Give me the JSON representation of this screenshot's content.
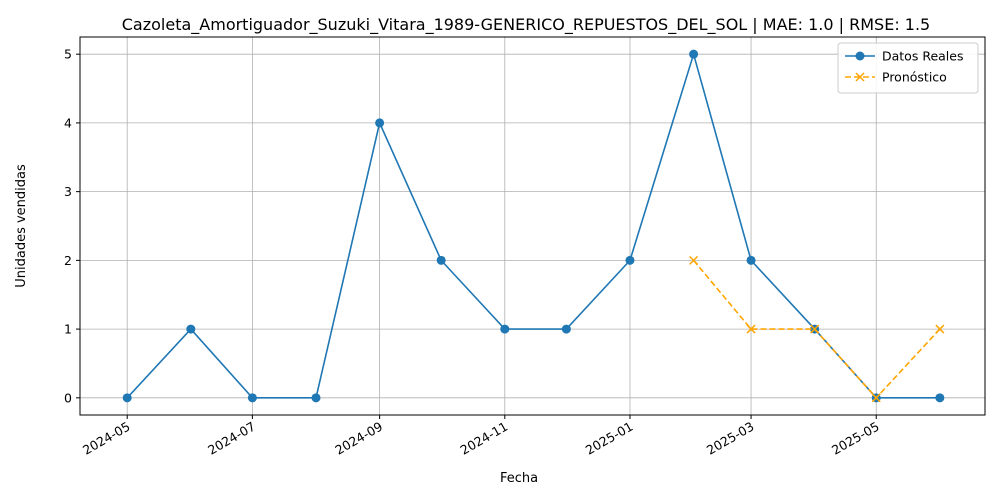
{
  "chart_data": {
    "type": "line",
    "title": "Cazoleta_Amortiguador_Suzuki_Vitara_1989-GENERICO_REPUESTOS_DEL_SOL | MAE: 1.0 | RMSE: 1.5",
    "xlabel": "Fecha",
    "ylabel": "Unidades vendidas",
    "xlim": [
      "2024-04-08",
      "2025-06-23"
    ],
    "ylim": [
      -0.25,
      5.25
    ],
    "x_ticks": [
      "2024-05-01",
      "2024-07-01",
      "2024-09-01",
      "2024-11-01",
      "2025-01-01",
      "2025-03-01",
      "2025-05-01"
    ],
    "x_tick_labels": [
      "2024-05",
      "2024-07",
      "2024-09",
      "2024-11",
      "2025-01",
      "2025-03",
      "2025-05"
    ],
    "y_ticks": [
      0,
      1,
      2,
      3,
      4,
      5
    ],
    "grid": true,
    "legend_position": "top-right",
    "series": [
      {
        "name": "Datos Reales",
        "color": "#1f77b4",
        "style": "solid",
        "marker": "circle",
        "x": [
          "2024-05-01",
          "2024-06-01",
          "2024-07-01",
          "2024-08-01",
          "2024-09-01",
          "2024-10-01",
          "2024-11-01",
          "2024-12-01",
          "2025-01-01",
          "2025-02-01",
          "2025-03-01",
          "2025-04-01",
          "2025-05-01",
          "2025-06-01"
        ],
        "values": [
          0,
          1,
          0,
          0,
          4,
          2,
          1,
          1,
          2,
          5,
          2,
          1,
          0,
          0
        ]
      },
      {
        "name": "Pronóstico",
        "color": "#ffa500",
        "style": "dashed",
        "marker": "x",
        "x": [
          "2025-02-01",
          "2025-03-01",
          "2025-04-01",
          "2025-05-01",
          "2025-06-01"
        ],
        "values": [
          2,
          1,
          1,
          0,
          1
        ]
      }
    ]
  }
}
